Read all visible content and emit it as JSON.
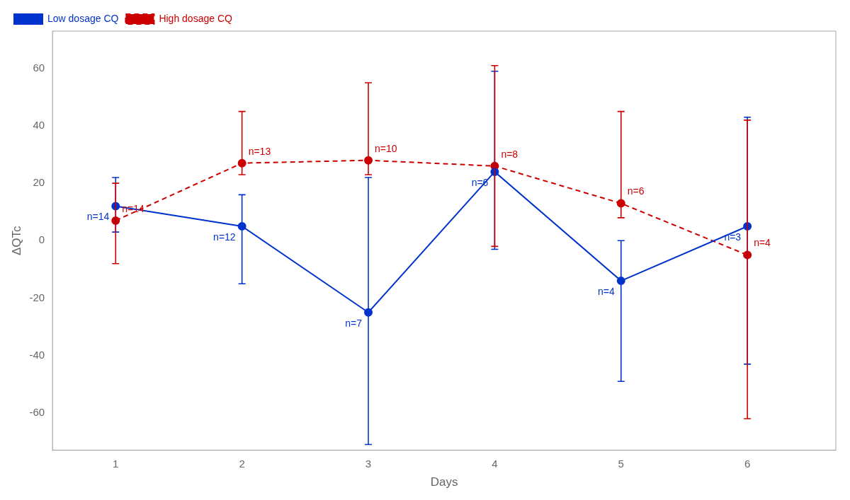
{
  "chart_data": {
    "type": "line",
    "xlabel": "Days",
    "ylabel": "ΔQTc",
    "x": [
      1,
      2,
      3,
      4,
      5,
      6
    ],
    "xlim": [
      0.5,
      6.7
    ],
    "xticks": [
      1,
      2,
      3,
      4,
      5,
      6
    ],
    "ylim": [
      -73,
      73
    ],
    "yticks": [
      -60,
      -40,
      -20,
      0,
      20,
      40,
      60
    ],
    "grid": false,
    "legend": "upper left",
    "series": [
      {
        "name": "Low dosage CQ",
        "color": "#0033CC",
        "marker": "circle",
        "line_style": "solid",
        "values": [
          12,
          5,
          -25,
          24,
          -14,
          5
        ],
        "error_upper": [
          10,
          11,
          47,
          35,
          14,
          38
        ],
        "error_lower": [
          9,
          20,
          46,
          27,
          35,
          48
        ],
        "point_labels": [
          "n=14",
          "n=12",
          "n=7",
          "n=6",
          "n=4",
          "n=3"
        ]
      },
      {
        "name": "High dosage CQ",
        "color": "#CC0000",
        "marker": "circle",
        "line_style": "dashed",
        "values": [
          7,
          27,
          28,
          26,
          13,
          -5
        ],
        "error_upper": [
          13,
          18,
          27,
          35,
          32,
          47
        ],
        "error_lower": [
          15,
          4,
          5,
          28,
          5,
          57
        ],
        "point_labels": [
          "n=14",
          "n=13",
          "n=10",
          "n=8",
          "n=6",
          "n=4"
        ]
      }
    ]
  }
}
